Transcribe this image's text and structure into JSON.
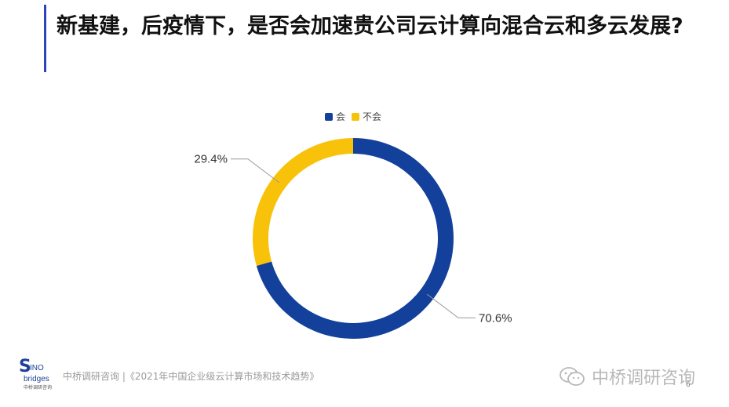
{
  "title": "新基建，后疫情下，是否会加速贵公司云计算向混合云和多云发展?",
  "chart_data": {
    "type": "pie",
    "donut": true,
    "labels": [
      "会",
      "不会"
    ],
    "values": [
      70.6,
      29.4
    ],
    "value_labels": [
      "70.6%",
      "29.4%"
    ],
    "colors": [
      "#12409b",
      "#f8c20a"
    ],
    "legend_position": "top"
  },
  "footer": {
    "logo_letter": "S",
    "logo_line1": "INO",
    "logo_line2": "bridges",
    "logo_sub": "中桥调研咨询",
    "text": "中桥调研咨询 |《2021年中国企业级云计算市场和技术趋势》"
  },
  "watermark": {
    "text": "中桥调研咨询"
  },
  "page_number": "6"
}
